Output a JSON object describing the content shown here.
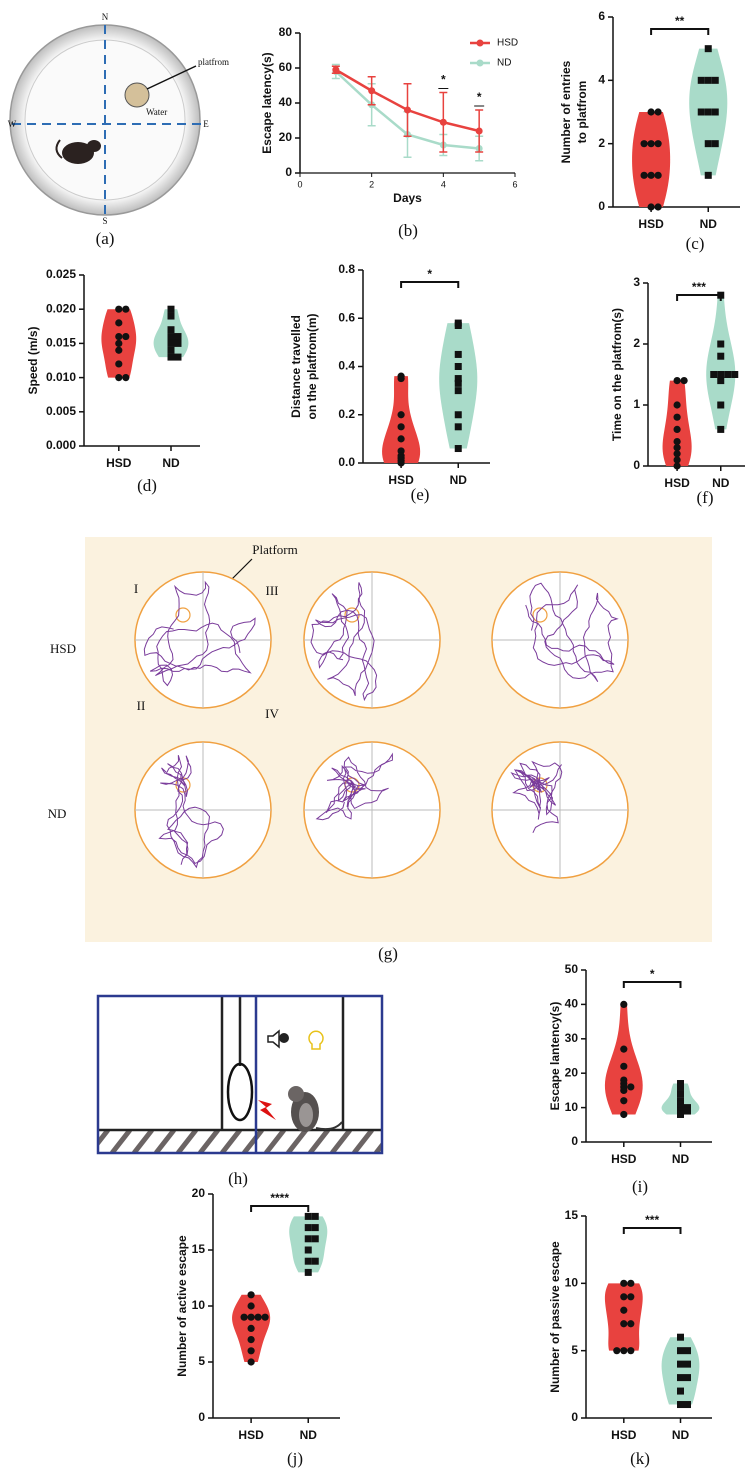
{
  "chart_data": [
    {
      "type": "line",
      "label": "(b)",
      "xlabel": "Days",
      "ylabel": "Escape latency(s)",
      "x": [
        1,
        2,
        3,
        4,
        5
      ],
      "xlim": [
        0,
        6
      ],
      "xticks": [
        0,
        2,
        4,
        6
      ],
      "ylim": [
        0,
        80
      ],
      "yticks": [
        0,
        20,
        40,
        60,
        80
      ],
      "series": [
        {
          "name": "HSD",
          "color": "#e8423f",
          "values": [
            59,
            47,
            36,
            29,
            24
          ],
          "errors": [
            2,
            8,
            15,
            17,
            12
          ]
        },
        {
          "name": "ND",
          "color": "#a9dbc9",
          "values": [
            58,
            39,
            22,
            16,
            14
          ],
          "errors": [
            4,
            12,
            13,
            6,
            7
          ]
        }
      ],
      "annotations": [
        {
          "x": 4,
          "text": "*"
        },
        {
          "x": 5,
          "text": "*"
        }
      ]
    },
    {
      "type": "violin",
      "label": "(c)",
      "ylabel": [
        "Number of entries",
        "to platfrom"
      ],
      "categories": [
        "HSD",
        "ND"
      ],
      "ylim": [
        0,
        6
      ],
      "yticks": [
        0,
        2,
        4,
        6
      ],
      "significance": "**",
      "series": [
        {
          "color": "#e8423f",
          "marker": "circle",
          "values": [
            3,
            3,
            2,
            2,
            2,
            1,
            1,
            1,
            0,
            0
          ]
        },
        {
          "color": "#a9dbc9",
          "marker": "square",
          "values": [
            5,
            4,
            4,
            4,
            3,
            3,
            3,
            2,
            2,
            1
          ]
        }
      ]
    },
    {
      "type": "violin",
      "label": "(d)",
      "ylabel": "Speed (m/s)",
      "categories": [
        "HSD",
        "ND"
      ],
      "ylim": [
        0,
        0.025
      ],
      "yticks": [
        {
          "value": 0,
          "label": "0.000"
        },
        {
          "value": 0.005,
          "label": "0.005"
        },
        {
          "value": 0.01,
          "label": "0.010"
        },
        {
          "value": 0.015,
          "label": "0.015"
        },
        {
          "value": 0.02,
          "label": "0.020"
        },
        {
          "value": 0.025,
          "label": "0.025"
        }
      ],
      "series": [
        {
          "color": "#e8423f",
          "marker": "circle",
          "values": [
            0.02,
            0.02,
            0.018,
            0.016,
            0.016,
            0.015,
            0.014,
            0.012,
            0.01,
            0.01
          ]
        },
        {
          "color": "#a9dbc9",
          "marker": "square",
          "values": [
            0.02,
            0.019,
            0.017,
            0.016,
            0.016,
            0.015,
            0.015,
            0.014,
            0.013,
            0.013
          ]
        }
      ]
    },
    {
      "type": "violin",
      "label": "(e)",
      "ylabel": [
        "Distance travelled",
        "on the platfrom(m)"
      ],
      "categories": [
        "HSD",
        "ND"
      ],
      "ylim": [
        0,
        0.8
      ],
      "yticks": [
        {
          "value": 0,
          "label": "0.0"
        },
        0.2,
        0.4,
        0.6,
        0.8
      ],
      "significance": "*",
      "series": [
        {
          "color": "#e8423f",
          "marker": "circle",
          "values": [
            0.36,
            0.35,
            0.2,
            0.15,
            0.1,
            0.05,
            0.03,
            0.02,
            0.01,
            0
          ]
        },
        {
          "color": "#a9dbc9",
          "marker": "square",
          "values": [
            0.58,
            0.57,
            0.45,
            0.4,
            0.35,
            0.33,
            0.3,
            0.2,
            0.15,
            0.06
          ]
        }
      ]
    },
    {
      "type": "violin",
      "label": "(f)",
      "ylabel": "Time on the platfrom(s)",
      "categories": [
        "HSD",
        "ND"
      ],
      "ylim": [
        0,
        3
      ],
      "yticks": [
        0,
        1,
        2,
        3
      ],
      "significance": "***",
      "series": [
        {
          "color": "#e8423f",
          "marker": "circle",
          "values": [
            1.4,
            1.4,
            1.0,
            0.8,
            0.6,
            0.4,
            0.3,
            0.2,
            0.1,
            0
          ]
        },
        {
          "color": "#a9dbc9",
          "marker": "square",
          "values": [
            2.8,
            2.0,
            1.8,
            1.5,
            1.5,
            1.5,
            1.5,
            1.4,
            1.0,
            0.6
          ]
        }
      ]
    },
    {
      "type": "violin",
      "label": "(i)",
      "ylabel": "Escape lantency(s)",
      "categories": [
        "HSD",
        "ND"
      ],
      "ylim": [
        0,
        50
      ],
      "yticks": [
        0,
        10,
        20,
        30,
        40,
        50
      ],
      "significance": "*",
      "series": [
        {
          "color": "#e8423f",
          "marker": "circle",
          "values": [
            40,
            27,
            22,
            18,
            17,
            16,
            16,
            15,
            12,
            8
          ]
        },
        {
          "color": "#a9dbc9",
          "marker": "square",
          "values": [
            17,
            16,
            14,
            12,
            11,
            10,
            10,
            9,
            9,
            8
          ]
        }
      ]
    },
    {
      "type": "violin",
      "label": "(j)",
      "ylabel": "Number of active escape",
      "categories": [
        "HSD",
        "ND"
      ],
      "ylim": [
        0,
        20
      ],
      "yticks": [
        0,
        5,
        10,
        15,
        20
      ],
      "significance": "****",
      "series": [
        {
          "color": "#e8423f",
          "marker": "circle",
          "values": [
            11,
            10,
            9,
            9,
            9,
            9,
            8,
            7,
            6,
            5
          ]
        },
        {
          "color": "#a9dbc9",
          "marker": "square",
          "values": [
            18,
            18,
            17,
            17,
            16,
            16,
            15,
            14,
            14,
            13
          ]
        }
      ]
    },
    {
      "type": "violin",
      "label": "(k)",
      "ylabel": "Number of passive escape",
      "categories": [
        "HSD",
        "ND"
      ],
      "ylim": [
        0,
        15
      ],
      "yticks": [
        0,
        5,
        10,
        15
      ],
      "significance": "***",
      "series": [
        {
          "color": "#e8423f",
          "marker": "circle",
          "values": [
            10,
            10,
            9,
            9,
            8,
            7,
            7,
            5,
            5,
            5
          ]
        },
        {
          "color": "#a9dbc9",
          "marker": "square",
          "values": [
            6,
            5,
            5,
            4,
            4,
            3,
            3,
            2,
            1,
            1
          ]
        }
      ]
    }
  ],
  "maze": {
    "label": "(a)",
    "north": "N",
    "south": "S",
    "west": "W",
    "east": "E",
    "platform": "platfrom",
    "water": "Water"
  },
  "tracks": {
    "label": "(g)",
    "platform": "Platform",
    "quadrants": [
      "I",
      "II",
      "III",
      "IV"
    ],
    "rows": [
      "HSD",
      "ND"
    ]
  },
  "shuttle_box": {
    "label": "(h)"
  }
}
